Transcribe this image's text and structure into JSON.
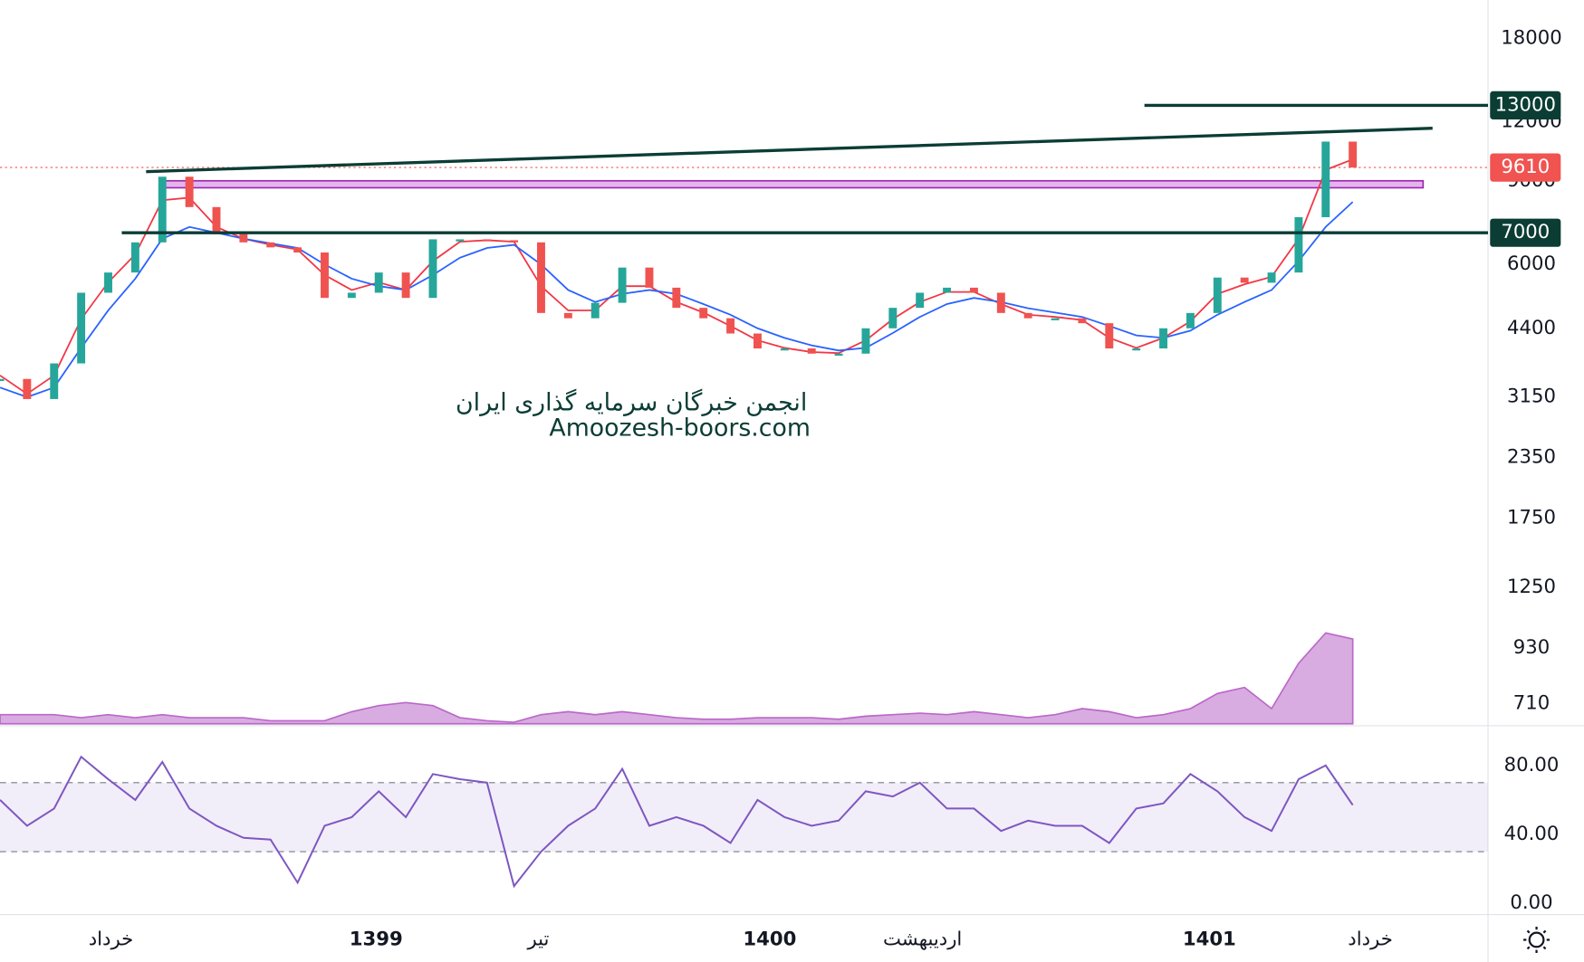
{
  "chart_data": [
    {
      "type": "candle-line",
      "log_scale": true,
      "xlim": [
        0,
        110
      ],
      "xticks": [
        {
          "value": 8.2,
          "label": "خرداد"
        },
        {
          "value": 27.8,
          "label": "1399"
        },
        {
          "value": 39.8,
          "label": "تیر"
        },
        {
          "value": 56.9,
          "label": "1400"
        },
        {
          "value": 68.2,
          "label": "اردیبهشت"
        },
        {
          "value": 89.4,
          "label": "1401"
        },
        {
          "value": 101.3,
          "label": "خرداد"
        }
      ],
      "ylim": [
        644,
        21690
      ],
      "yticks": [
        710,
        930,
        1250,
        1750,
        2350,
        3150,
        4400,
        6000,
        9000,
        12000,
        18000
      ],
      "x": [
        0,
        2,
        4,
        6,
        8,
        10,
        12,
        14,
        16,
        18,
        20,
        22,
        24,
        26,
        28,
        30,
        32,
        34,
        36,
        38,
        40,
        42,
        44,
        46,
        48,
        50,
        52,
        54,
        56,
        58,
        60,
        62,
        64,
        66,
        68,
        70,
        72,
        74,
        76,
        78,
        80,
        82,
        84,
        86,
        88,
        90,
        92,
        94,
        96,
        98,
        100
      ],
      "series": [
        {
          "color": "#26a69a",
          "down_color": "#ef5350",
          "values": [
            3440,
            3120,
            3710,
            5230,
            5770,
            6680,
            9190,
            7930,
            6950,
            6680,
            6520,
            6360,
            5100,
            5230,
            5770,
            5100,
            6780,
            6780,
            6750,
            6680,
            4740,
            4620,
            4980,
            5910,
            5360,
            4860,
            4620,
            4290,
            3990,
            3990,
            3890,
            3890,
            4400,
            4860,
            5230,
            5360,
            5230,
            4740,
            4620,
            4620,
            4510,
            3990,
            3990,
            4400,
            4740,
            5630,
            5490,
            5770,
            7550,
            10900,
            9610
          ]
        },
        {
          "color": "#f23645",
          "values": [
            3500,
            3200,
            3500,
            4600,
            5500,
            6300,
            8200,
            8300,
            7200,
            6800,
            6600,
            6450,
            5700,
            5300,
            5500,
            5300,
            6100,
            6700,
            6750,
            6700,
            5400,
            4800,
            4800,
            5400,
            5400,
            5000,
            4750,
            4450,
            4150,
            4000,
            3920,
            3900,
            4150,
            4600,
            5000,
            5250,
            5250,
            4950,
            4700,
            4650,
            4580,
            4200,
            4000,
            4200,
            4550,
            5200,
            5450,
            5650,
            6800,
            9500,
            10000
          ]
        },
        {
          "color": "#2962ff",
          "values": [
            3300,
            3150,
            3300,
            4000,
            4800,
            5600,
            6800,
            7200,
            7000,
            6800,
            6650,
            6500,
            6000,
            5600,
            5400,
            5300,
            5700,
            6200,
            6500,
            6600,
            6000,
            5300,
            5000,
            5200,
            5300,
            5200,
            4950,
            4700,
            4400,
            4200,
            4050,
            3950,
            4000,
            4300,
            4650,
            4950,
            5100,
            5000,
            4850,
            4750,
            4650,
            4450,
            4250,
            4200,
            4350,
            4700,
            5000,
            5300,
            6100,
            7200,
            8130
          ]
        }
      ],
      "levels": [
        {
          "value": 13000,
          "x_start": 84.6,
          "color": "#0b3d35"
        },
        {
          "value": 7000,
          "x_start": 9.0,
          "color": "#0b3d35"
        }
      ],
      "last_price": {
        "value": 9610,
        "color": "#f05350"
      },
      "trendline": {
        "x": [
          10.8,
          105.9
        ],
        "y": [
          9420,
          11630
        ],
        "color": "#0b3d35"
      },
      "zone": {
        "x": [
          12.2,
          105.2
        ],
        "y": [
          8710,
          9010
        ],
        "color": "#c35bd8"
      },
      "watermark": [
        "انجمن خبرگان سرمایه گذاری ایران",
        "Amoozesh-boors.com"
      ]
    },
    {
      "type": "area",
      "ylim": [
        0,
        100
      ],
      "color": "#ba68c8",
      "values": [
        3,
        3,
        3,
        2,
        3,
        2,
        3,
        2,
        2,
        2,
        1,
        1,
        1,
        4,
        6,
        7,
        6,
        2,
        1,
        0.5,
        3,
        4,
        3,
        4,
        3,
        2,
        1.5,
        1.5,
        2,
        2,
        2,
        1.5,
        2.5,
        3,
        3.5,
        3,
        4,
        3,
        2,
        3,
        5,
        4,
        2,
        3,
        5,
        10,
        12,
        5,
        20,
        30,
        28
      ]
    },
    {
      "type": "line",
      "color": "#7e57c2",
      "ylim": [
        -5.9,
        102.4
      ],
      "yticks": [
        {
          "value": 0,
          "label": "0.00"
        },
        {
          "value": 40,
          "label": "40.00"
        },
        {
          "value": 80,
          "label": "80.00"
        }
      ],
      "band": [
        30,
        70
      ],
      "values": [
        60,
        45,
        55,
        85,
        72,
        60,
        82,
        55,
        45,
        38,
        37,
        12,
        45,
        50,
        65,
        50,
        75,
        72,
        70,
        10,
        30,
        45,
        55,
        78,
        45,
        50,
        45,
        35,
        60,
        50,
        45,
        48,
        65,
        62,
        70,
        55,
        55,
        42,
        48,
        45,
        45,
        35,
        55,
        58,
        75,
        65,
        50,
        42,
        72,
        80,
        57
      ]
    }
  ]
}
